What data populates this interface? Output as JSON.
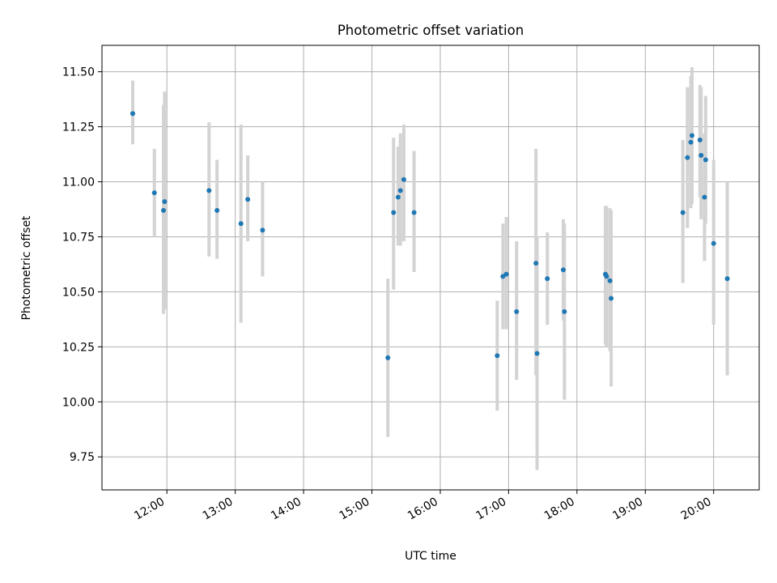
{
  "chart_data": {
    "type": "scatter",
    "title": "Photometric offset variation",
    "xlabel": "UTC time",
    "ylabel": "Photometric offset",
    "x_unit": "UTC time (HH:MM)",
    "xlim": [
      "11:03",
      "20:40"
    ],
    "ylim": [
      9.6,
      11.62
    ],
    "x_ticks": [
      "12:00",
      "13:00",
      "14:00",
      "15:00",
      "16:00",
      "17:00",
      "18:00",
      "19:00",
      "20:00"
    ],
    "y_ticks": [
      "9.75",
      "10.00",
      "10.25",
      "10.50",
      "10.75",
      "11.00",
      "11.25",
      "11.50"
    ],
    "grid": true,
    "marker_color": "#1f77b4",
    "errorbar_color": "#d3d3d3",
    "points": [
      {
        "x": "11:30",
        "y": 11.31,
        "low": 11.17,
        "high": 11.46
      },
      {
        "x": "11:49",
        "y": 10.95,
        "low": 10.75,
        "high": 11.15
      },
      {
        "x": "11:57",
        "y": 10.87,
        "low": 10.4,
        "high": 11.35
      },
      {
        "x": "11:58",
        "y": 10.91,
        "low": 10.42,
        "high": 11.41
      },
      {
        "x": "12:37",
        "y": 10.96,
        "low": 10.66,
        "high": 11.27
      },
      {
        "x": "12:44",
        "y": 10.87,
        "low": 10.65,
        "high": 11.1
      },
      {
        "x": "13:05",
        "y": 10.81,
        "low": 10.36,
        "high": 11.26
      },
      {
        "x": "13:11",
        "y": 10.92,
        "low": 10.73,
        "high": 11.12
      },
      {
        "x": "13:24",
        "y": 10.78,
        "low": 10.57,
        "high": 11.0
      },
      {
        "x": "15:14",
        "y": 10.2,
        "low": 9.84,
        "high": 10.56
      },
      {
        "x": "15:19",
        "y": 10.86,
        "low": 10.51,
        "high": 11.2
      },
      {
        "x": "15:23",
        "y": 10.93,
        "low": 10.71,
        "high": 11.16
      },
      {
        "x": "15:25",
        "y": 10.96,
        "low": 10.71,
        "high": 11.22
      },
      {
        "x": "15:28",
        "y": 11.01,
        "low": 10.73,
        "high": 11.26
      },
      {
        "x": "15:37",
        "y": 10.86,
        "low": 10.59,
        "high": 11.14
      },
      {
        "x": "16:50",
        "y": 10.21,
        "low": 9.96,
        "high": 10.46
      },
      {
        "x": "16:55",
        "y": 10.57,
        "low": 10.33,
        "high": 10.81
      },
      {
        "x": "16:58",
        "y": 10.58,
        "low": 10.33,
        "high": 10.84
      },
      {
        "x": "17:07",
        "y": 10.41,
        "low": 10.1,
        "high": 10.73
      },
      {
        "x": "17:24",
        "y": 10.63,
        "low": 10.12,
        "high": 11.15
      },
      {
        "x": "17:25",
        "y": 10.22,
        "low": 9.69,
        "high": 10.75
      },
      {
        "x": "17:34",
        "y": 10.56,
        "low": 10.35,
        "high": 10.77
      },
      {
        "x": "17:48",
        "y": 10.6,
        "low": 10.37,
        "high": 10.83
      },
      {
        "x": "17:49",
        "y": 10.41,
        "low": 10.01,
        "high": 10.81
      },
      {
        "x": "18:25",
        "y": 10.58,
        "low": 10.26,
        "high": 10.89
      },
      {
        "x": "18:26",
        "y": 10.57,
        "low": 10.25,
        "high": 10.89
      },
      {
        "x": "18:29",
        "y": 10.55,
        "low": 10.23,
        "high": 10.88
      },
      {
        "x": "18:30",
        "y": 10.47,
        "low": 10.07,
        "high": 10.87
      },
      {
        "x": "19:33",
        "y": 10.86,
        "low": 10.54,
        "high": 11.19
      },
      {
        "x": "19:37",
        "y": 11.11,
        "low": 10.79,
        "high": 11.43
      },
      {
        "x": "19:40",
        "y": 11.18,
        "low": 10.88,
        "high": 11.48
      },
      {
        "x": "19:41",
        "y": 11.21,
        "low": 10.9,
        "high": 11.52
      },
      {
        "x": "19:48",
        "y": 11.19,
        "low": 10.93,
        "high": 11.44
      },
      {
        "x": "19:49",
        "y": 11.12,
        "low": 10.83,
        "high": 11.43
      },
      {
        "x": "19:52",
        "y": 10.93,
        "low": 10.64,
        "high": 11.22
      },
      {
        "x": "19:53",
        "y": 11.1,
        "low": 10.81,
        "high": 11.39
      },
      {
        "x": "20:00",
        "y": 10.72,
        "low": 10.35,
        "high": 11.1
      },
      {
        "x": "20:12",
        "y": 10.56,
        "low": 10.12,
        "high": 11.0
      }
    ]
  }
}
